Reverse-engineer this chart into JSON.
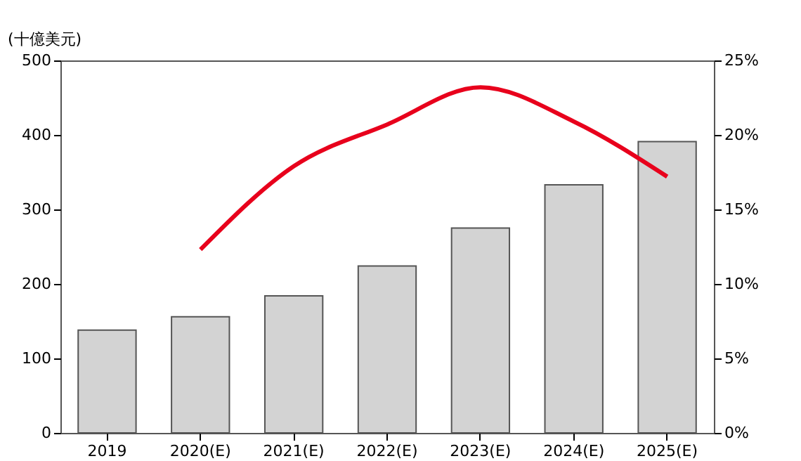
{
  "chart_data": {
    "type": "bar",
    "ylabel": "(十億美元)",
    "categories": [
      "2019",
      "2020(E)",
      "2021(E)",
      "2022(E)",
      "2023(E)",
      "2024(E)",
      "2025(E)"
    ],
    "series": [
      {
        "color": "#d3d3d3",
        "values": [
          138,
          156,
          184,
          224,
          275,
          333,
          391
        ]
      },
      {
        "type": "line",
        "color": "#e8001c",
        "axis": "y2",
        "values": [
          null,
          12.3,
          17.9,
          20.7,
          23.2,
          20.9,
          17.2
        ]
      }
    ],
    "ylim": [
      0,
      500
    ],
    "yticks": [
      0,
      100,
      200,
      300,
      400,
      500
    ],
    "y2lim": [
      0,
      25
    ],
    "y2ticks": [
      {
        "value": 0,
        "label": "0%"
      },
      {
        "value": 5,
        "label": "5%"
      },
      {
        "value": 10,
        "label": "10%"
      },
      {
        "value": 15,
        "label": "15%"
      },
      {
        "value": 20,
        "label": "20%"
      },
      {
        "value": 25,
        "label": "25%"
      }
    ],
    "marker": "none",
    "line_style": "solid"
  }
}
